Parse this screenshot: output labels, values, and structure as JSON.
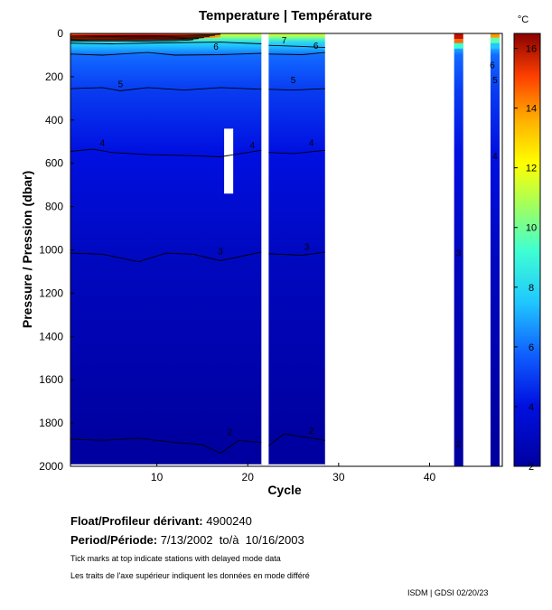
{
  "chart_data": {
    "type": "heatmap",
    "title": "Temperature | Température",
    "xlabel": "Cycle",
    "ylabel": "Pressure / Pression (dbar)",
    "xlim": [
      0.5,
      48
    ],
    "ylim": [
      0,
      2000
    ],
    "y_inverted": true,
    "x_ticks": [
      "10",
      "20",
      "30",
      "40"
    ],
    "x_tick_values": [
      10,
      20,
      30,
      40
    ],
    "y_ticks": [
      "0",
      "200",
      "400",
      "600",
      "800",
      "1000",
      "1200",
      "1400",
      "1600",
      "1800",
      "2000"
    ],
    "y_tick_values": [
      0,
      200,
      400,
      600,
      800,
      1000,
      1200,
      1400,
      1600,
      1800,
      2000
    ],
    "colorbar": {
      "unit": "°C",
      "min": 2,
      "max": 16.5,
      "ticks": [
        "2",
        "4",
        "6",
        "8",
        "10",
        "12",
        "14",
        "16"
      ],
      "tick_values": [
        2,
        4,
        6,
        8,
        10,
        12,
        14,
        16
      ]
    },
    "data_segments": [
      {
        "x_start": 0.5,
        "x_end": 21.5
      },
      {
        "x_start": 22.3,
        "x_end": 28.5
      },
      {
        "x_start": 42.7,
        "x_end": 43.7
      },
      {
        "x_start": 46.7,
        "x_end": 47.7
      }
    ],
    "missing_blocks": [
      {
        "x_start": 17.4,
        "x_end": 18.4,
        "p_start": 440,
        "p_end": 740
      }
    ],
    "surface_warm_layer": {
      "x_start": 0.5,
      "x_end": 17,
      "p_max": 40,
      "t_peak": 16
    },
    "contours": [
      {
        "level": "7",
        "segments": [
          [
            [
              0.5,
              45
            ],
            [
              5,
              48
            ],
            [
              10,
              44
            ],
            [
              17,
              40
            ],
            [
              21.5,
              48
            ]
          ],
          [
            [
              22.3,
              55
            ],
            [
              26,
              60
            ],
            [
              28.5,
              65
            ]
          ]
        ]
      },
      {
        "level": "6",
        "segments": [
          [
            [
              0.5,
              95
            ],
            [
              4,
              100
            ],
            [
              9,
              88
            ],
            [
              12,
              100
            ],
            [
              17,
              98
            ],
            [
              21.5,
              92
            ]
          ],
          [
            [
              22.3,
              95
            ],
            [
              26,
              98
            ],
            [
              28.5,
              88
            ]
          ]
        ]
      },
      {
        "level": "5",
        "segments": [
          [
            [
              0.5,
              255
            ],
            [
              4,
              250
            ],
            [
              6,
              265
            ],
            [
              9,
              250
            ],
            [
              13,
              262
            ],
            [
              17,
              250
            ],
            [
              21.5,
              258
            ]
          ],
          [
            [
              22.3,
              258
            ],
            [
              25,
              262
            ],
            [
              28.5,
              255
            ]
          ]
        ]
      },
      {
        "level": "4",
        "segments": [
          [
            [
              0.5,
              545
            ],
            [
              3,
              535
            ],
            [
              5,
              550
            ],
            [
              9,
              560
            ],
            [
              14,
              565
            ],
            [
              17,
              570
            ],
            [
              20,
              550
            ],
            [
              21.5,
              540
            ]
          ],
          [
            [
              22.3,
              550
            ],
            [
              25,
              555
            ],
            [
              28.5,
              540
            ]
          ]
        ]
      },
      {
        "level": "3",
        "segments": [
          [
            [
              0.5,
              1015
            ],
            [
              4,
              1020
            ],
            [
              8,
              1055
            ],
            [
              11,
              1015
            ],
            [
              14,
              1020
            ],
            [
              17,
              1050
            ],
            [
              21.5,
              1010
            ]
          ],
          [
            [
              22.3,
              1018
            ],
            [
              26,
              1025
            ],
            [
              28.5,
              1010
            ]
          ]
        ]
      },
      {
        "level": "2",
        "segments": [
          [
            [
              0.5,
              1875
            ],
            [
              4,
              1880
            ],
            [
              8,
              1870
            ],
            [
              12,
              1890
            ],
            [
              15,
              1900
            ],
            [
              17,
              1940
            ],
            [
              19,
              1880
            ],
            [
              21.5,
              1890
            ]
          ],
          [
            [
              22.3,
              1905
            ],
            [
              24,
              1850
            ],
            [
              27,
              1870
            ],
            [
              28.5,
              1880
            ]
          ]
        ]
      }
    ],
    "contour_label_positions": [
      {
        "level": "7",
        "x": 24,
        "p": 45
      },
      {
        "level": "6",
        "x": 16.5,
        "p": 75
      },
      {
        "level": "6",
        "x": 27.5,
        "p": 70
      },
      {
        "level": "6",
        "x": 46.9,
        "p": 160
      },
      {
        "level": "5",
        "x": 6,
        "p": 248
      },
      {
        "level": "5",
        "x": 25,
        "p": 230
      },
      {
        "level": "5",
        "x": 47.2,
        "p": 230
      },
      {
        "level": "4",
        "x": 4,
        "p": 520
      },
      {
        "level": "4",
        "x": 20.5,
        "p": 530
      },
      {
        "level": "4",
        "x": 27,
        "p": 520
      },
      {
        "level": "4",
        "x": 47.2,
        "p": 580
      },
      {
        "level": "3",
        "x": 17,
        "p": 1020
      },
      {
        "level": "3",
        "x": 26.5,
        "p": 1000
      },
      {
        "level": "3",
        "x": 43.2,
        "p": 1030
      },
      {
        "level": "2",
        "x": 18,
        "p": 1855
      },
      {
        "level": "2",
        "x": 27,
        "p": 1850
      },
      {
        "level": "2",
        "x": 43.2,
        "p": 1910
      }
    ]
  },
  "info": {
    "float_label": "Float/Profileur dérivant:",
    "float_value": "4900240",
    "period_label": "Period/Période:",
    "period_value": "7/13/2002  to/à  10/16/2003",
    "note_en": "Tick marks at top indicate stations with delayed mode data",
    "note_fr": "Les traits de l'axe supérieur indiquent les données en mode différé",
    "credit": "ISDM | GDSI  02/20/23"
  }
}
